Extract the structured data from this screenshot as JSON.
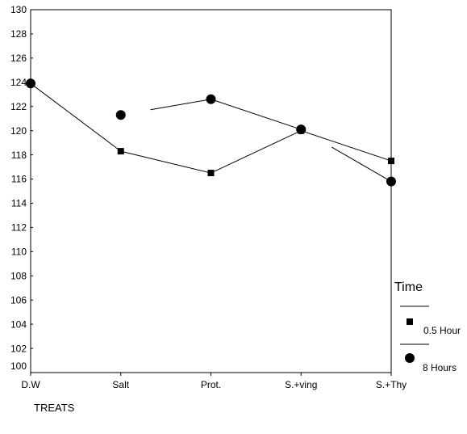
{
  "chart_data": {
    "type": "line",
    "xlabel": "TREATS",
    "categories": [
      "D.W",
      "Salt",
      "Prot.",
      "S.+ving",
      "S.+Thy"
    ],
    "ylim": [
      100,
      130
    ],
    "yticks": [
      100,
      102,
      104,
      106,
      108,
      110,
      112,
      114,
      116,
      118,
      120,
      122,
      124,
      126,
      128,
      130
    ],
    "grid": false,
    "legend": {
      "title": "Time",
      "position": "right"
    },
    "series": [
      {
        "name": "0.5 Hour",
        "marker": "square-marker",
        "color": "#000000",
        "values": [
          123.9,
          118.3,
          116.5,
          120.0,
          117.5
        ]
      },
      {
        "name": "8 Hours",
        "marker": "circle-marker",
        "color": "#000000",
        "values": [
          123.9,
          121.3,
          122.6,
          120.1,
          115.8
        ]
      }
    ]
  }
}
